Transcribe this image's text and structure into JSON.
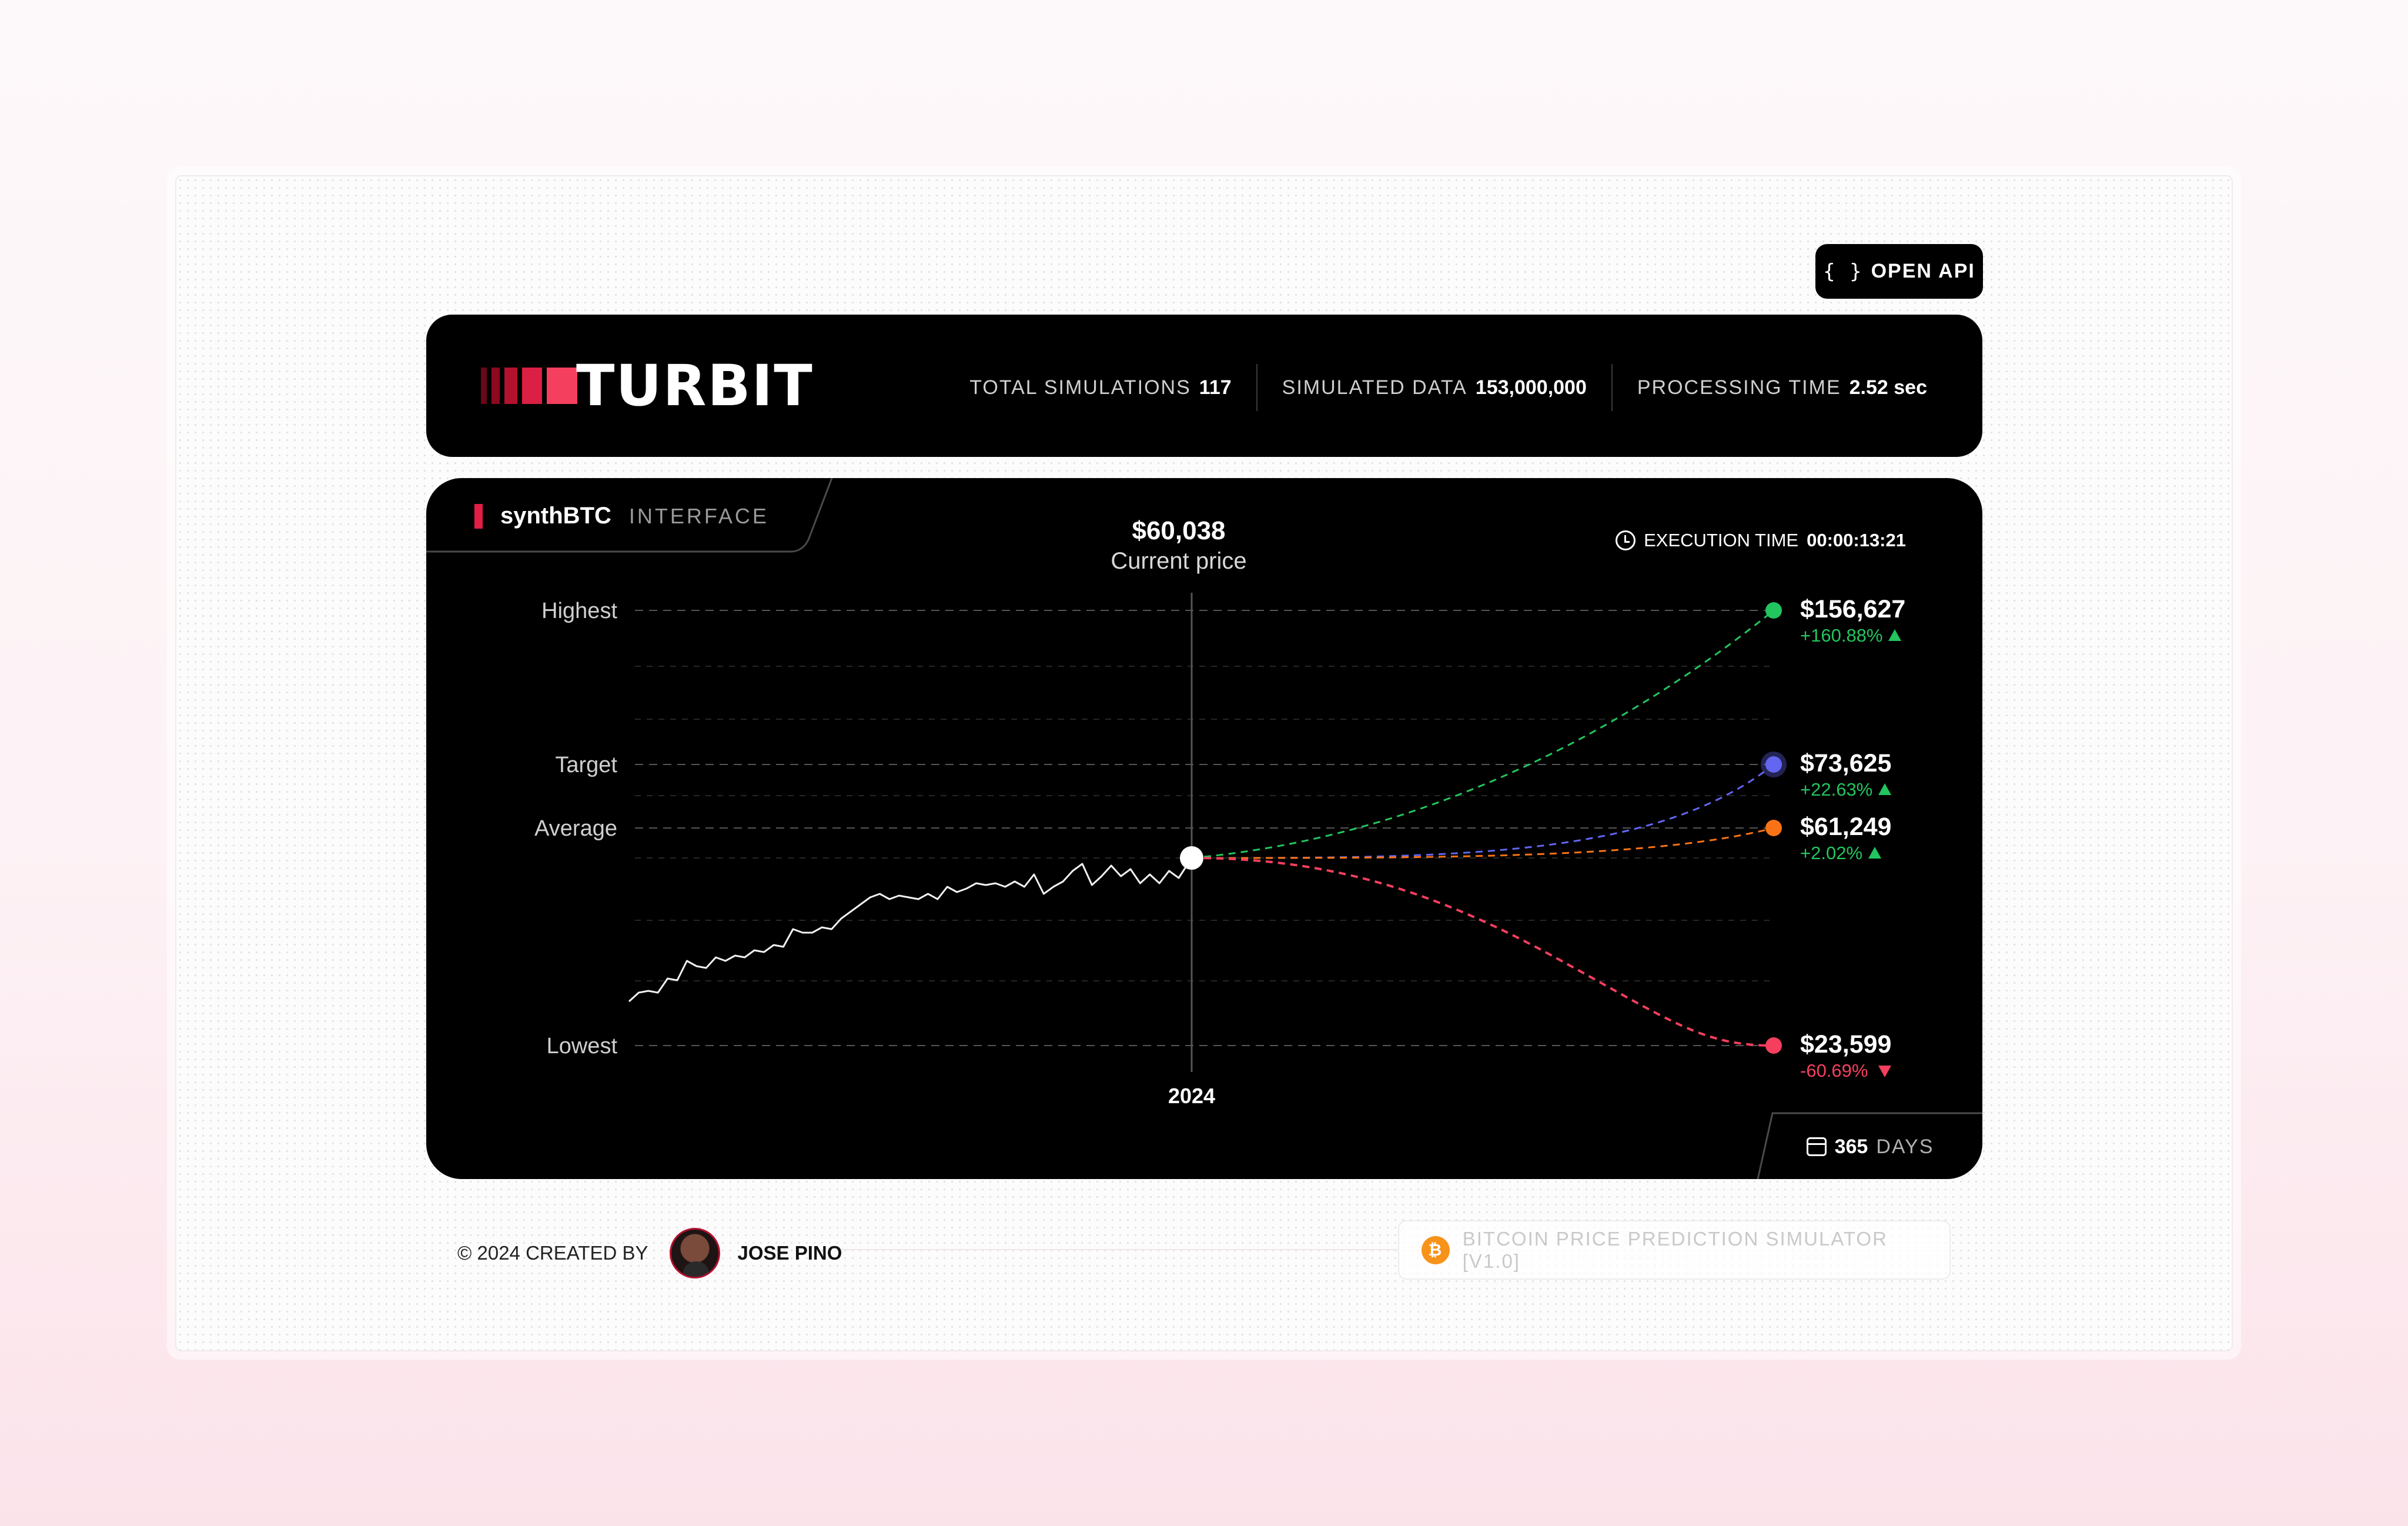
{
  "toolbar": {
    "open_api_label": "OPEN API",
    "open_api_icon": "{ }"
  },
  "header": {
    "brand": "TURBIT",
    "stats": [
      {
        "label": "TOTAL SIMULATIONS",
        "value": "117"
      },
      {
        "label": "SIMULATED DATA",
        "value": "153,000,000"
      },
      {
        "label": "PROCESSING TIME",
        "value": "2.52 sec"
      }
    ]
  },
  "panel": {
    "title": "synthBTC",
    "subtitle": "INTERFACE",
    "current_price": {
      "value": "$60,038",
      "label": "Current price"
    },
    "execution_time": {
      "label": "EXECUTION TIME",
      "value": "00:00:13:21"
    },
    "period": {
      "value": "365",
      "unit": "DAYS"
    }
  },
  "chart_data": {
    "type": "line",
    "x_label": "2024",
    "levels": [
      {
        "label": "Highest",
        "value": "$156,627",
        "change": "+160.88%",
        "direction": "up",
        "color": "#22c55e"
      },
      {
        "label": "Target",
        "value": "$73,625",
        "change": "+22.63%",
        "direction": "up",
        "color": "#6366f1"
      },
      {
        "label": "Average",
        "value": "$61,249",
        "change": "+2.02%",
        "direction": "up",
        "color": "#f97316"
      },
      {
        "label": "Lowest",
        "value": "$23,599",
        "change": "-60.69%",
        "direction": "down",
        "color": "#f43f5e"
      }
    ],
    "current_value": 60038,
    "history_relative": [
      0.05,
      0.1,
      0.11,
      0.1,
      0.18,
      0.17,
      0.28,
      0.25,
      0.24,
      0.3,
      0.28,
      0.31,
      0.3,
      0.34,
      0.33,
      0.37,
      0.36,
      0.46,
      0.44,
      0.44,
      0.47,
      0.46,
      0.52,
      0.56,
      0.6,
      0.64,
      0.66,
      0.63,
      0.65,
      0.64,
      0.63,
      0.66,
      0.63,
      0.7,
      0.67,
      0.69,
      0.72,
      0.71,
      0.72,
      0.7,
      0.73,
      0.7,
      0.77,
      0.66,
      0.7,
      0.73,
      0.79,
      0.83,
      0.71,
      0.76,
      0.82,
      0.76,
      0.8,
      0.72,
      0.77,
      0.72,
      0.79,
      0.75
    ]
  },
  "footer": {
    "credit": "© 2024 CREATED BY",
    "author": "JOSE PINO",
    "badge": "BITCOIN PRICE PREDICTION SIMULATOR [V1.0]",
    "badge_icon": "₿"
  },
  "colors": {
    "brand_red": "#e11d48",
    "up": "#22c55e",
    "down": "#f43f5e",
    "background_dark": "#000000"
  }
}
